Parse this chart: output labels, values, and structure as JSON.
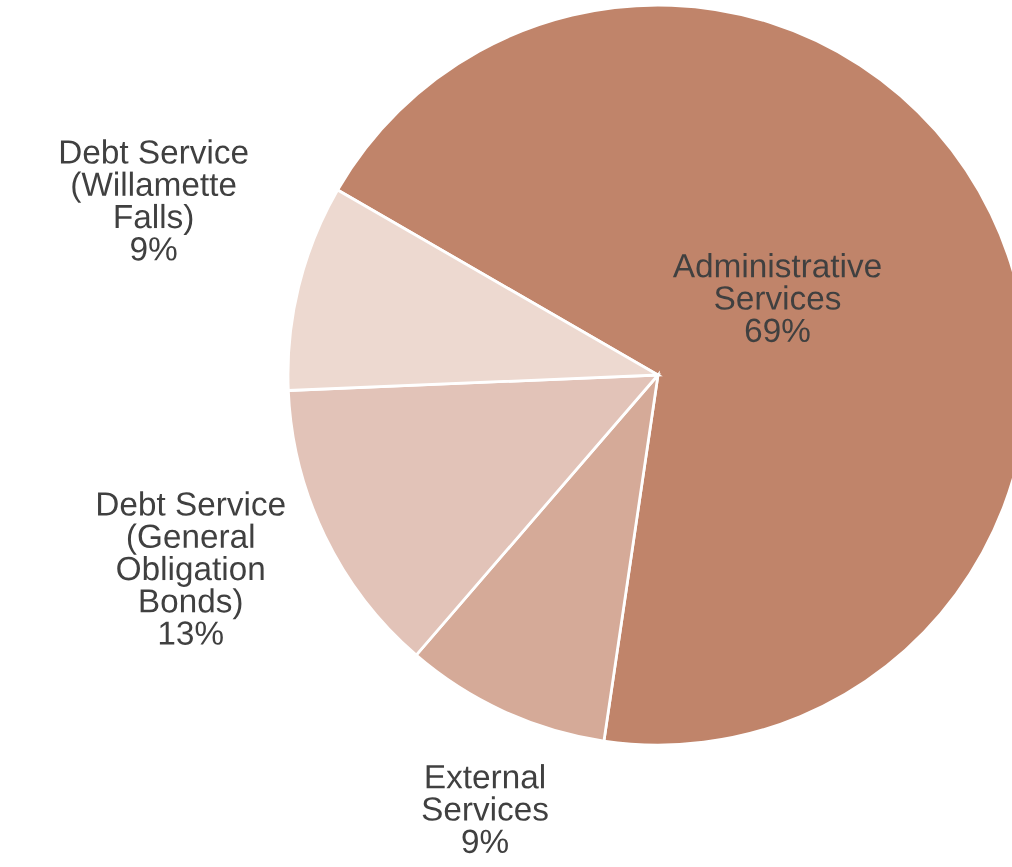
{
  "chart_data": {
    "type": "pie",
    "categories": [
      "Administrative Services",
      "External Services",
      "Debt Service (General Obligation Bonds)",
      "Debt Service (Willamette Falls)"
    ],
    "values": [
      69,
      9,
      13,
      9
    ],
    "colors": [
      "#c0846a",
      "#d5aa98",
      "#e2c3b8",
      "#edd9d0"
    ],
    "value_labels": [
      "69%",
      "9%",
      "13%",
      "9%"
    ]
  }
}
